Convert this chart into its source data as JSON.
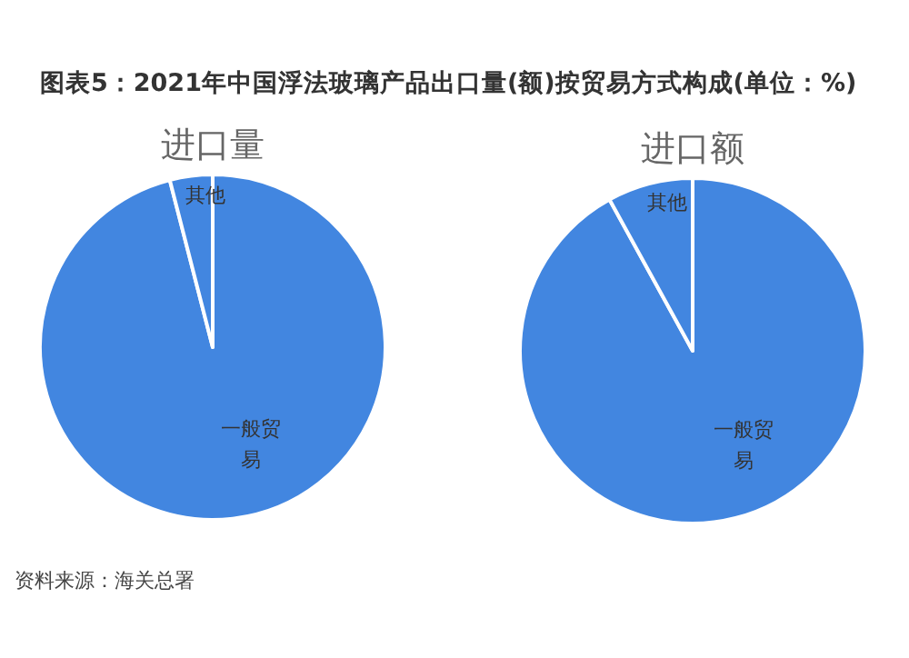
{
  "chart_data": [
    {
      "type": "pie",
      "title": "进口量",
      "annotations": [
        "图表5：2021年中国浮法玻璃产品出口量(额)按贸易方式构成(单位：%)"
      ],
      "categories": [
        "一般贸易",
        "其他"
      ],
      "values": [
        96,
        4
      ],
      "colors": [
        "#4286e0",
        "#4286e0"
      ]
    },
    {
      "type": "pie",
      "title": "进口额",
      "annotations": [
        "资料来源：海关总署"
      ],
      "categories": [
        "一般贸易",
        "其他"
      ],
      "values": [
        92,
        8
      ],
      "colors": [
        "#4286e0",
        "#4286e0"
      ]
    }
  ]
}
